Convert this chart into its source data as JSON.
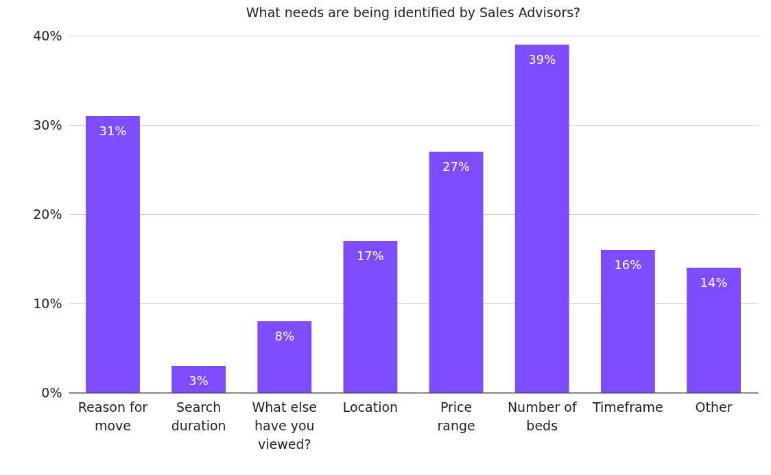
{
  "chart_data": {
    "type": "bar",
    "title": "What needs are being identified by Sales Advisors?",
    "categories": [
      "Reason for move",
      "Search duration",
      "What else have you viewed?",
      "Location",
      "Price range",
      "Number of beds",
      "Timeframe",
      "Other"
    ],
    "values": [
      31,
      3,
      8,
      17,
      27,
      39,
      16,
      14
    ],
    "value_labels": [
      "31%",
      "3%",
      "8%",
      "17%",
      "27%",
      "39%",
      "16%",
      "14%"
    ],
    "color": "#7c4dff",
    "ylim": [
      0,
      40
    ],
    "yticks": [
      {
        "value": 0,
        "label": "0%"
      },
      {
        "value": 10,
        "label": "10%"
      },
      {
        "value": 20,
        "label": "20%"
      },
      {
        "value": 30,
        "label": "30%"
      },
      {
        "value": 40,
        "label": "40%"
      }
    ],
    "grid": "y"
  }
}
